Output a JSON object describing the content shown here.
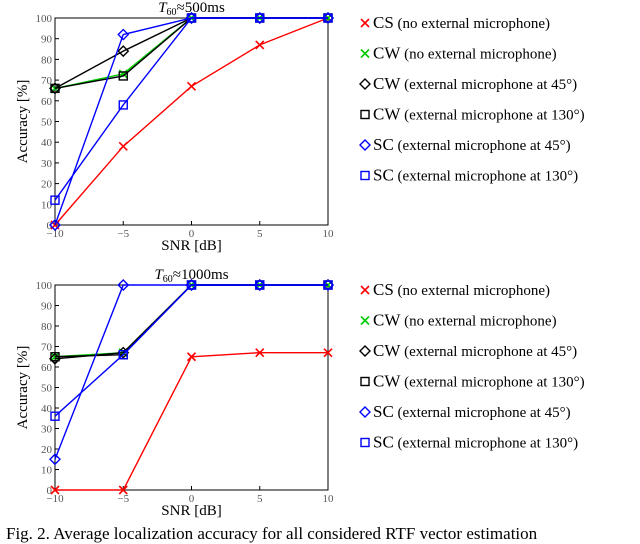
{
  "caption": "Fig. 2.   Average localization accuracy for all considered RTF vector estimation",
  "colors": {
    "CS": "#ff0000",
    "CW": "#00cc00",
    "CW45": "#000000",
    "CW130": "#000000",
    "SC45": "#0000ff",
    "SC130": "#0000ff"
  },
  "legend": [
    {
      "key": "CS",
      "marker": "x",
      "name": "CS",
      "note": "(no external microphone)"
    },
    {
      "key": "CW",
      "marker": "x",
      "name": "CW",
      "note": "(no external microphone)"
    },
    {
      "key": "CW45",
      "marker": "diamond",
      "name": "CW",
      "note": "(external microphone at 45°)"
    },
    {
      "key": "CW130",
      "marker": "square",
      "name": "CW",
      "note": "(external microphone at 130°)"
    },
    {
      "key": "SC45",
      "marker": "diamond",
      "name": "SC",
      "note": "(external microphone at 45°)"
    },
    {
      "key": "SC130",
      "marker": "square",
      "name": "SC",
      "note": "(external microphone at 130°)"
    }
  ],
  "chart_data": [
    {
      "type": "line",
      "title_prefix": "T",
      "title_sub": "60",
      "title_suffix": "≈500ms",
      "xlabel": "SNR [dB]",
      "ylabel": "Accuracy [%]",
      "x": [
        -10,
        -5,
        0,
        5,
        10
      ],
      "xticks": [
        "−10",
        "−5",
        "0",
        "5",
        "10"
      ],
      "yticks": [
        "0",
        "10",
        "20",
        "30",
        "40",
        "50",
        "60",
        "70",
        "80",
        "90",
        "100"
      ],
      "xlim": [
        -10,
        10
      ],
      "ylim": [
        0,
        100
      ],
      "grid": false,
      "series": [
        {
          "key": "CS",
          "values": [
            0,
            38,
            67,
            87,
            100
          ]
        },
        {
          "key": "CW",
          "values": [
            66,
            73,
            100,
            100,
            100
          ]
        },
        {
          "key": "CW45",
          "values": [
            66,
            84,
            100,
            100,
            100
          ]
        },
        {
          "key": "CW130",
          "values": [
            66,
            72,
            100,
            100,
            100
          ]
        },
        {
          "key": "SC45",
          "values": [
            0,
            92,
            100,
            100,
            100
          ]
        },
        {
          "key": "SC130",
          "values": [
            12,
            58,
            100,
            100,
            100
          ]
        }
      ]
    },
    {
      "type": "line",
      "title_prefix": "T",
      "title_sub": "60",
      "title_suffix": "≈1000ms",
      "xlabel": "SNR [dB]",
      "ylabel": "Accuracy [%]",
      "x": [
        -10,
        -5,
        0,
        5,
        10
      ],
      "xticks": [
        "−10",
        "−5",
        "0",
        "5",
        "10"
      ],
      "yticks": [
        "0",
        "10",
        "20",
        "30",
        "40",
        "50",
        "60",
        "70",
        "80",
        "90",
        "100"
      ],
      "xlim": [
        -10,
        10
      ],
      "ylim": [
        0,
        100
      ],
      "grid": false,
      "series": [
        {
          "key": "CS",
          "values": [
            0,
            0,
            65,
            67,
            67
          ]
        },
        {
          "key": "CW",
          "values": [
            65,
            67,
            100,
            100,
            100
          ]
        },
        {
          "key": "CW45",
          "values": [
            64,
            67,
            100,
            100,
            100
          ]
        },
        {
          "key": "CW130",
          "values": [
            65,
            66,
            100,
            100,
            100
          ]
        },
        {
          "key": "SC45",
          "values": [
            15,
            100,
            100,
            100,
            100
          ]
        },
        {
          "key": "SC130",
          "values": [
            36,
            66,
            100,
            100,
            100
          ]
        }
      ]
    }
  ]
}
